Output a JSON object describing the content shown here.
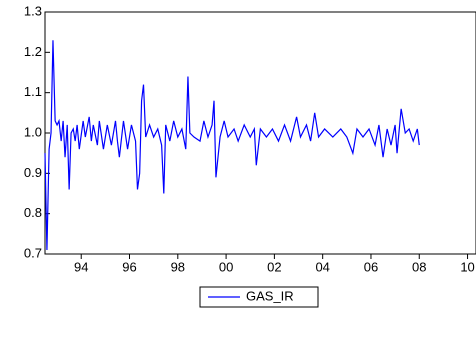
{
  "chart_data": {
    "type": "line",
    "x": [
      1993.0,
      1993.08,
      1993.17,
      1993.25,
      1993.33,
      1993.42,
      1993.5,
      1993.58,
      1993.67,
      1993.75,
      1993.83,
      1993.92,
      1994.0,
      1994.08,
      1994.17,
      1994.25,
      1994.33,
      1994.42,
      1994.58,
      1994.67,
      1994.83,
      1994.92,
      1995.0,
      1995.17,
      1995.25,
      1995.42,
      1995.58,
      1995.75,
      1995.92,
      1996.0,
      1996.08,
      1996.25,
      1996.42,
      1996.58,
      1996.75,
      1996.83,
      1996.92,
      1997.0,
      1997.08,
      1997.17,
      1997.33,
      1997.5,
      1997.67,
      1997.83,
      1997.92,
      1998.0,
      1998.17,
      1998.33,
      1998.5,
      1998.67,
      1998.83,
      1998.92,
      1999.0,
      1999.17,
      1999.42,
      1999.58,
      1999.75,
      1999.92,
      2000.0,
      2000.08,
      2000.25,
      2000.42,
      2000.58,
      2000.83,
      2001.0,
      2001.25,
      2001.5,
      2001.67,
      2001.75,
      2001.92,
      2002.17,
      2002.42,
      2002.67,
      2002.92,
      2003.17,
      2003.42,
      2003.58,
      2003.83,
      2004.0,
      2004.17,
      2004.33,
      2004.58,
      2004.92,
      2005.25,
      2005.5,
      2005.75,
      2005.92,
      2006.17,
      2006.42,
      2006.67,
      2006.83,
      2007.0,
      2007.17,
      2007.33,
      2007.5,
      2007.58,
      2007.75,
      2007.92,
      2008.08,
      2008.25,
      2008.42,
      2008.5
    ],
    "series": [
      {
        "name": "GAS_IR",
        "color": "#0000ff",
        "values": [
          0.95,
          0.71,
          0.96,
          1.0,
          1.23,
          1.03,
          1.02,
          1.03,
          0.98,
          1.03,
          0.94,
          1.02,
          0.86,
          1.0,
          1.01,
          0.98,
          1.02,
          0.96,
          1.03,
          0.99,
          1.04,
          0.98,
          1.02,
          0.97,
          1.03,
          0.96,
          1.02,
          0.97,
          1.03,
          0.98,
          0.94,
          1.03,
          0.96,
          1.02,
          0.98,
          0.86,
          0.9,
          1.08,
          1.12,
          0.99,
          1.02,
          0.99,
          1.01,
          0.97,
          0.85,
          1.02,
          0.98,
          1.03,
          0.99,
          1.01,
          0.96,
          1.14,
          1.0,
          0.99,
          0.98,
          1.03,
          0.99,
          1.02,
          1.08,
          0.89,
          0.99,
          1.03,
          0.99,
          1.01,
          0.98,
          1.02,
          0.99,
          1.01,
          0.92,
          1.01,
          0.99,
          1.01,
          0.98,
          1.02,
          0.98,
          1.04,
          0.99,
          1.02,
          0.98,
          1.05,
          0.99,
          1.01,
          0.99,
          1.01,
          0.99,
          0.95,
          1.01,
          0.99,
          1.01,
          0.97,
          1.02,
          0.94,
          1.01,
          0.97,
          1.02,
          0.95,
          1.06,
          1.0,
          1.01,
          0.98,
          1.01,
          0.97
        ]
      }
    ],
    "xlim": [
      1993,
      2010.85
    ],
    "xticks": [
      {
        "value": 1994.5,
        "label": "94"
      },
      {
        "value": 1996.5,
        "label": "96"
      },
      {
        "value": 1998.5,
        "label": "98"
      },
      {
        "value": 2000.5,
        "label": "00"
      },
      {
        "value": 2002.5,
        "label": "02"
      },
      {
        "value": 2004.5,
        "label": "04"
      },
      {
        "value": 2006.5,
        "label": "06"
      },
      {
        "value": 2008.5,
        "label": "08"
      },
      {
        "value": 2010.5,
        "label": "10"
      }
    ],
    "ylim": [
      0.7,
      1.3
    ],
    "yticks": [
      0.7,
      0.8,
      0.9,
      {
        "value": 1,
        "label": "1.0"
      },
      1.1,
      1.2,
      1.3
    ],
    "legend": "bottom"
  }
}
